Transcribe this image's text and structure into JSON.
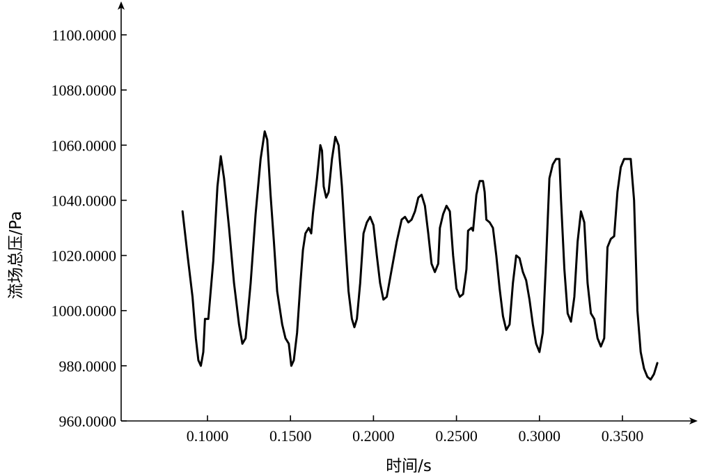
{
  "chart_data": {
    "type": "line",
    "title": "",
    "xlabel": "时间/s",
    "ylabel": "流场总压/Pa",
    "xlim": [
      0.04,
      0.395
    ],
    "ylim": [
      960,
      1100
    ],
    "xticks": [
      0.1,
      0.15,
      0.2,
      0.25,
      0.3,
      0.35
    ],
    "xtick_labels": [
      "0.1000",
      "0.1500",
      "0.2000",
      "0.2500",
      "0.3000",
      "0.3500"
    ],
    "yticks": [
      960,
      980,
      1000,
      1020,
      1040,
      1060,
      1080,
      1100
    ],
    "ytick_labels": [
      "960.0000",
      "980.0000",
      "1000.0000",
      "1020.0000",
      "1040.0000",
      "1060.0000",
      "1080.0000",
      "1100.0000"
    ],
    "grid": false,
    "series": [
      {
        "values": [
          [
            0.085,
            1036
          ],
          [
            0.088,
            1020
          ],
          [
            0.091,
            1005
          ],
          [
            0.093,
            990
          ],
          [
            0.0945,
            982
          ],
          [
            0.096,
            980
          ],
          [
            0.0975,
            985
          ],
          [
            0.0985,
            997
          ],
          [
            0.1005,
            997
          ],
          [
            0.1035,
            1018
          ],
          [
            0.106,
            1045
          ],
          [
            0.108,
            1056
          ],
          [
            0.11,
            1048
          ],
          [
            0.113,
            1030
          ],
          [
            0.116,
            1010
          ],
          [
            0.119,
            995
          ],
          [
            0.121,
            988
          ],
          [
            0.123,
            990
          ],
          [
            0.126,
            1010
          ],
          [
            0.129,
            1035
          ],
          [
            0.132,
            1055
          ],
          [
            0.1345,
            1065
          ],
          [
            0.136,
            1062
          ],
          [
            0.138,
            1042
          ],
          [
            0.14,
            1025
          ],
          [
            0.142,
            1007
          ],
          [
            0.145,
            995
          ],
          [
            0.147,
            990
          ],
          [
            0.149,
            988
          ],
          [
            0.1505,
            980
          ],
          [
            0.152,
            982
          ],
          [
            0.154,
            992
          ],
          [
            0.156,
            1010
          ],
          [
            0.1575,
            1022
          ],
          [
            0.159,
            1028
          ],
          [
            0.161,
            1030
          ],
          [
            0.1625,
            1028
          ],
          [
            0.1635,
            1035
          ],
          [
            0.166,
            1048
          ],
          [
            0.168,
            1060
          ],
          [
            0.169,
            1058
          ],
          [
            0.17,
            1045
          ],
          [
            0.1715,
            1041
          ],
          [
            0.173,
            1043
          ],
          [
            0.175,
            1055
          ],
          [
            0.177,
            1063
          ],
          [
            0.179,
            1060
          ],
          [
            0.181,
            1045
          ],
          [
            0.183,
            1025
          ],
          [
            0.185,
            1007
          ],
          [
            0.187,
            997
          ],
          [
            0.1885,
            994
          ],
          [
            0.19,
            997
          ],
          [
            0.192,
            1010
          ],
          [
            0.194,
            1028
          ],
          [
            0.196,
            1032
          ],
          [
            0.198,
            1034
          ],
          [
            0.2,
            1031
          ],
          [
            0.202,
            1020
          ],
          [
            0.204,
            1010
          ],
          [
            0.206,
            1004
          ],
          [
            0.208,
            1005
          ],
          [
            0.211,
            1015
          ],
          [
            0.214,
            1025
          ],
          [
            0.217,
            1033
          ],
          [
            0.219,
            1034
          ],
          [
            0.221,
            1032
          ],
          [
            0.223,
            1033
          ],
          [
            0.225,
            1036
          ],
          [
            0.227,
            1041
          ],
          [
            0.229,
            1042
          ],
          [
            0.231,
            1038
          ],
          [
            0.233,
            1028
          ],
          [
            0.235,
            1017
          ],
          [
            0.237,
            1014
          ],
          [
            0.239,
            1017
          ],
          [
            0.24,
            1030
          ],
          [
            0.242,
            1035
          ],
          [
            0.244,
            1038
          ],
          [
            0.246,
            1036
          ],
          [
            0.248,
            1020
          ],
          [
            0.25,
            1008
          ],
          [
            0.252,
            1005
          ],
          [
            0.254,
            1006
          ],
          [
            0.256,
            1015
          ],
          [
            0.257,
            1029
          ],
          [
            0.259,
            1030
          ],
          [
            0.26,
            1029
          ],
          [
            0.262,
            1042
          ],
          [
            0.264,
            1047
          ],
          [
            0.266,
            1047
          ],
          [
            0.267,
            1043
          ],
          [
            0.268,
            1033
          ],
          [
            0.27,
            1032
          ],
          [
            0.272,
            1030
          ],
          [
            0.274,
            1020
          ],
          [
            0.276,
            1008
          ],
          [
            0.278,
            998
          ],
          [
            0.28,
            993
          ],
          [
            0.282,
            995
          ],
          [
            0.284,
            1010
          ],
          [
            0.286,
            1020
          ],
          [
            0.288,
            1019
          ],
          [
            0.29,
            1014
          ],
          [
            0.292,
            1011
          ],
          [
            0.294,
            1004
          ],
          [
            0.296,
            995
          ],
          [
            0.298,
            988
          ],
          [
            0.3,
            985
          ],
          [
            0.302,
            992
          ],
          [
            0.304,
            1018
          ],
          [
            0.306,
            1048
          ],
          [
            0.308,
            1053
          ],
          [
            0.31,
            1055
          ],
          [
            0.312,
            1055
          ],
          [
            0.313,
            1040
          ],
          [
            0.315,
            1015
          ],
          [
            0.317,
            999
          ],
          [
            0.319,
            996
          ],
          [
            0.321,
            1005
          ],
          [
            0.323,
            1025
          ],
          [
            0.325,
            1036
          ],
          [
            0.327,
            1032
          ],
          [
            0.329,
            1010
          ],
          [
            0.331,
            999
          ],
          [
            0.333,
            997
          ],
          [
            0.335,
            990
          ],
          [
            0.337,
            987
          ],
          [
            0.339,
            990
          ],
          [
            0.341,
            1023
          ],
          [
            0.343,
            1026
          ],
          [
            0.345,
            1027
          ],
          [
            0.347,
            1043
          ],
          [
            0.349,
            1052
          ],
          [
            0.351,
            1055
          ],
          [
            0.353,
            1055
          ],
          [
            0.355,
            1055
          ],
          [
            0.357,
            1040
          ],
          [
            0.359,
            1000
          ],
          [
            0.361,
            985
          ],
          [
            0.363,
            979
          ],
          [
            0.365,
            976
          ],
          [
            0.367,
            975
          ],
          [
            0.369,
            977
          ],
          [
            0.371,
            981
          ]
        ]
      }
    ]
  }
}
